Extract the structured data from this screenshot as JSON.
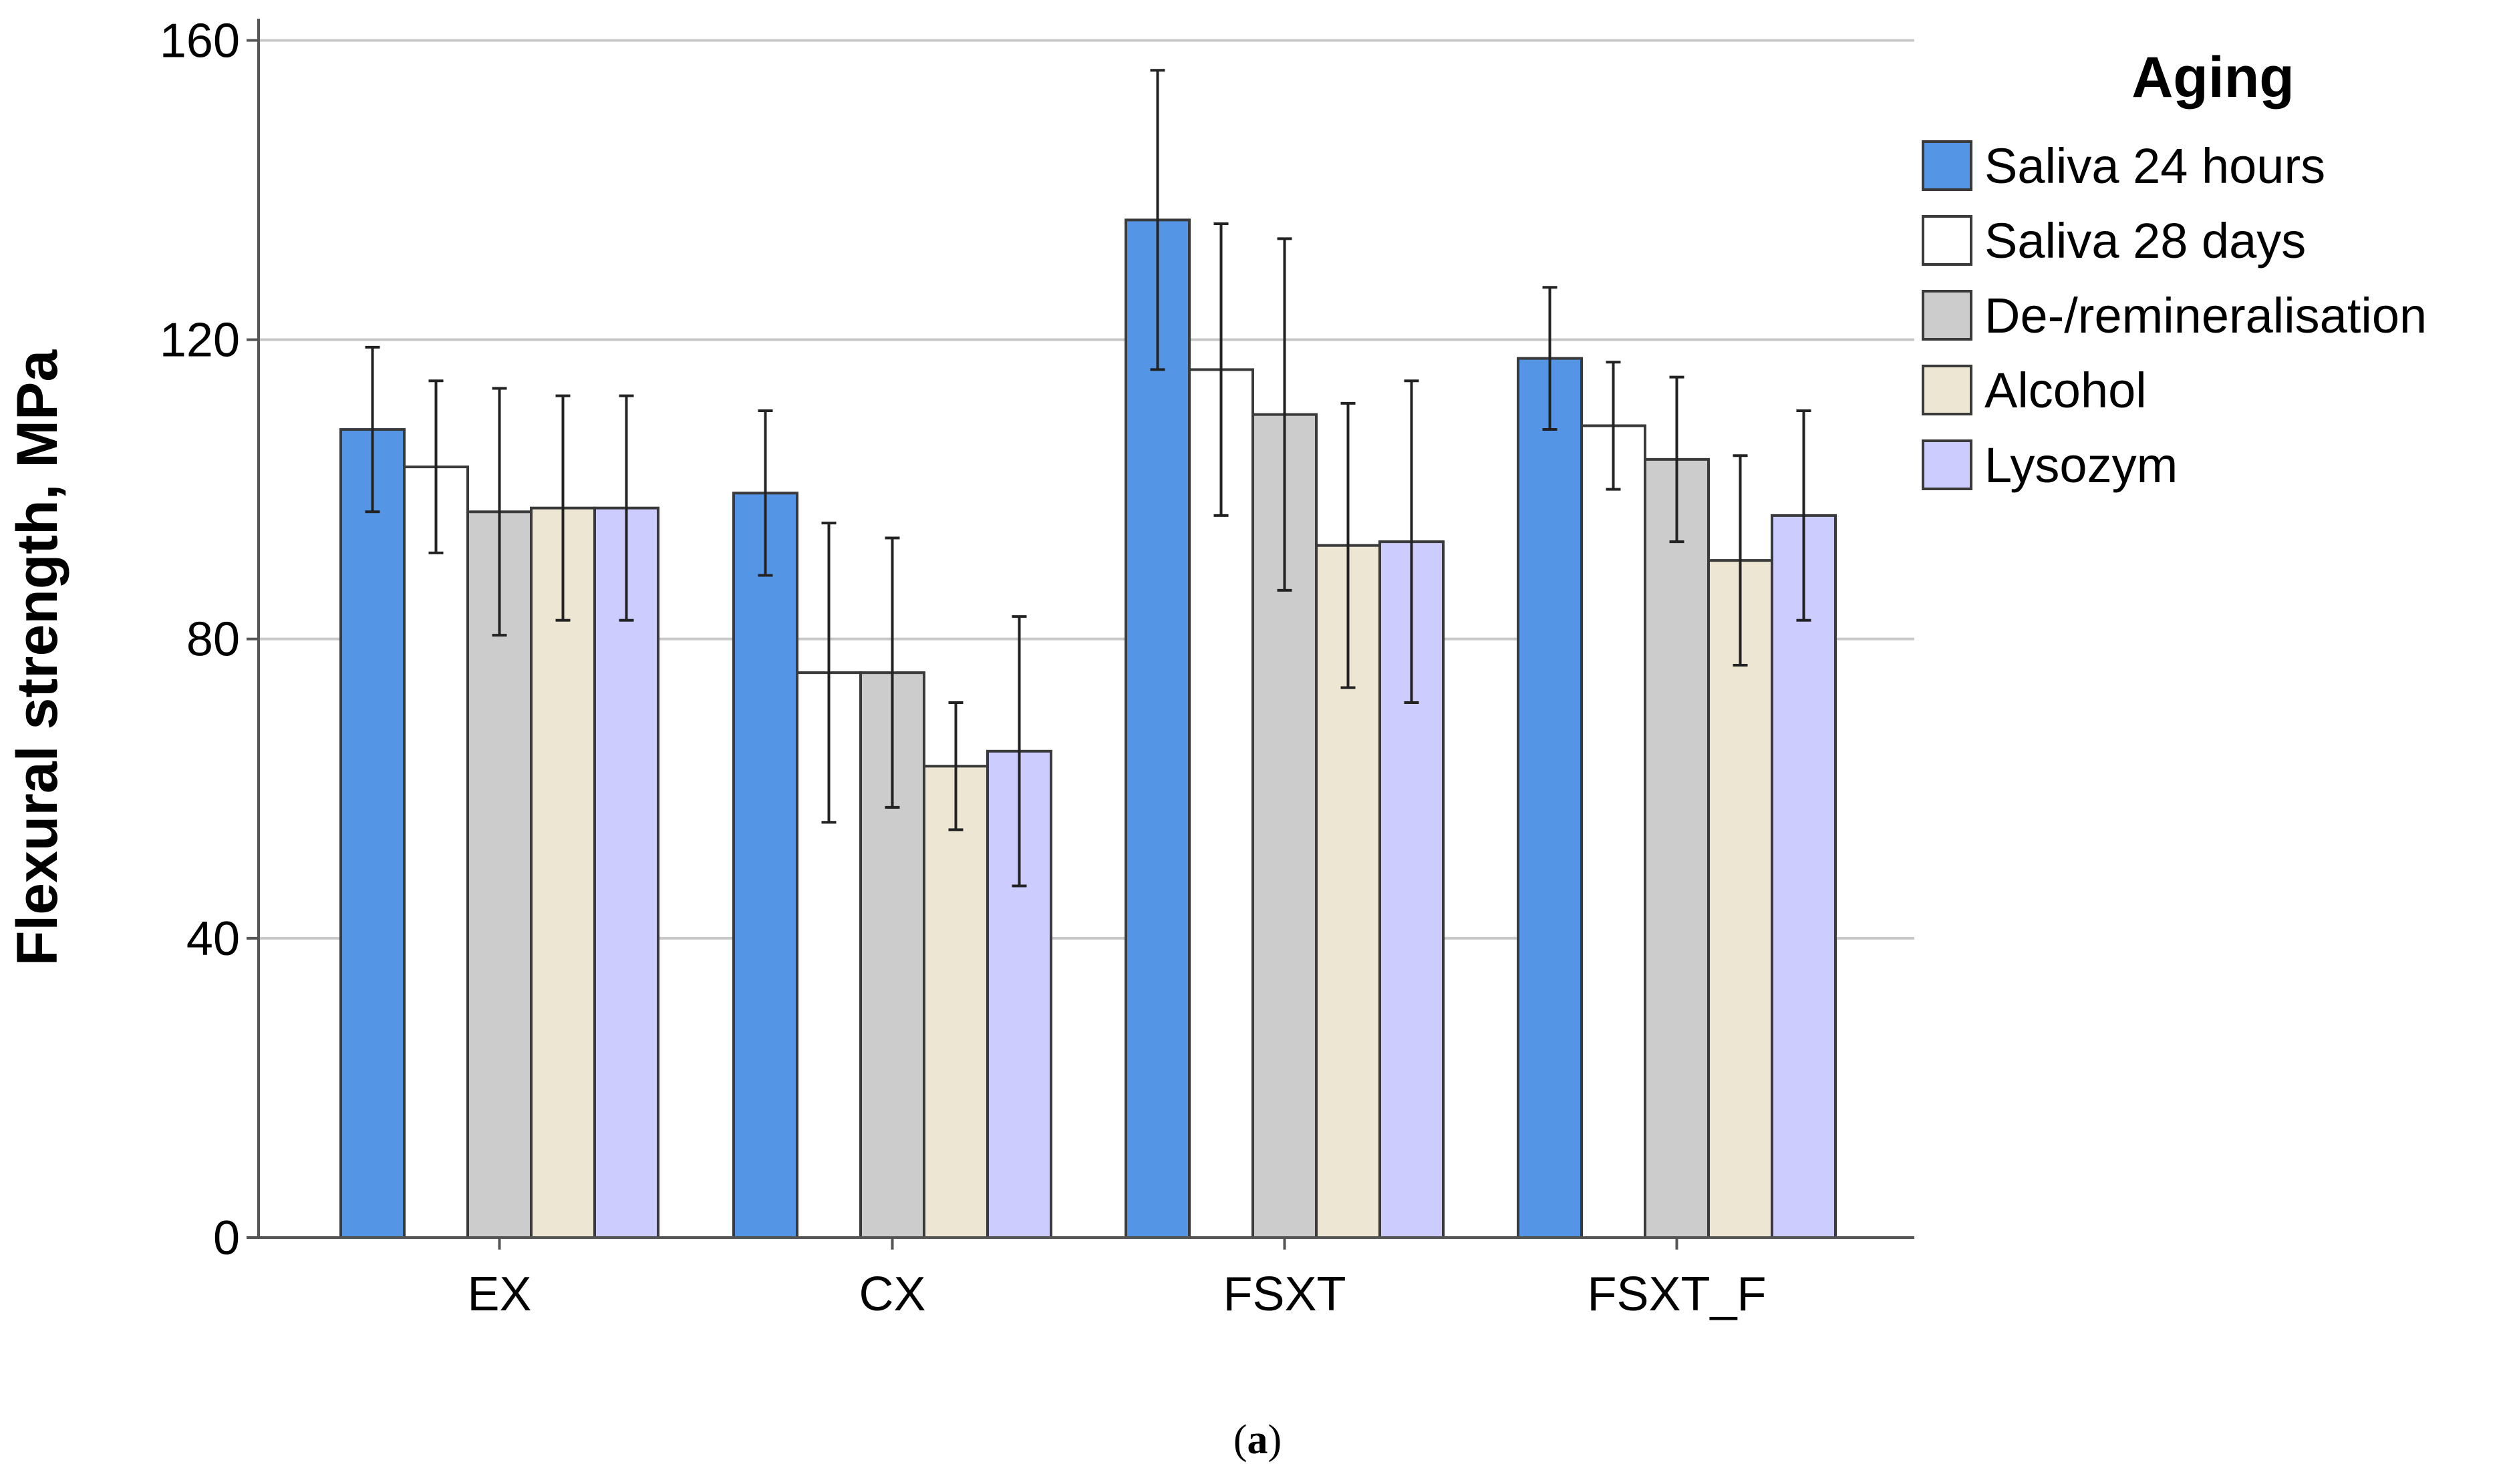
{
  "chart_data": {
    "type": "bar",
    "title": "",
    "xlabel": "",
    "ylabel": "Flexural strength, MPa",
    "ylim": [
      0,
      160
    ],
    "yticks": [
      0,
      40,
      80,
      120,
      160
    ],
    "grid": true,
    "legend_position": "top-right",
    "legend_title": "Aging",
    "categories": [
      "EX",
      "CX",
      "FSXT",
      "FSXT_F"
    ],
    "series": [
      {
        "name": "Saliva 24 hours",
        "color": "#5595e6",
        "values": [
          108,
          99.5,
          136,
          117.5
        ],
        "error": [
          11,
          11,
          20,
          9.5
        ]
      },
      {
        "name": "Saliva 28 days",
        "color": "#ffffff",
        "values": [
          103,
          75.5,
          116,
          108.5
        ],
        "error": [
          11.5,
          20,
          19.5,
          8.5
        ]
      },
      {
        "name": "De-/remineralisation",
        "color": "#cccccc",
        "values": [
          97,
          75.5,
          110,
          104
        ],
        "error": [
          16.5,
          18,
          23.5,
          11
        ]
      },
      {
        "name": "Alcohol",
        "color": "#ece6d2",
        "values": [
          97.5,
          63,
          92.5,
          90.5
        ],
        "error": [
          15,
          8.5,
          19,
          14
        ]
      },
      {
        "name": "Lysozym",
        "color": "#ccccff",
        "values": [
          97.5,
          65,
          93,
          96.5
        ],
        "error": [
          15,
          18,
          21.5,
          14
        ]
      }
    ]
  },
  "caption": {
    "open": "(",
    "label": "a",
    "close": ")"
  }
}
